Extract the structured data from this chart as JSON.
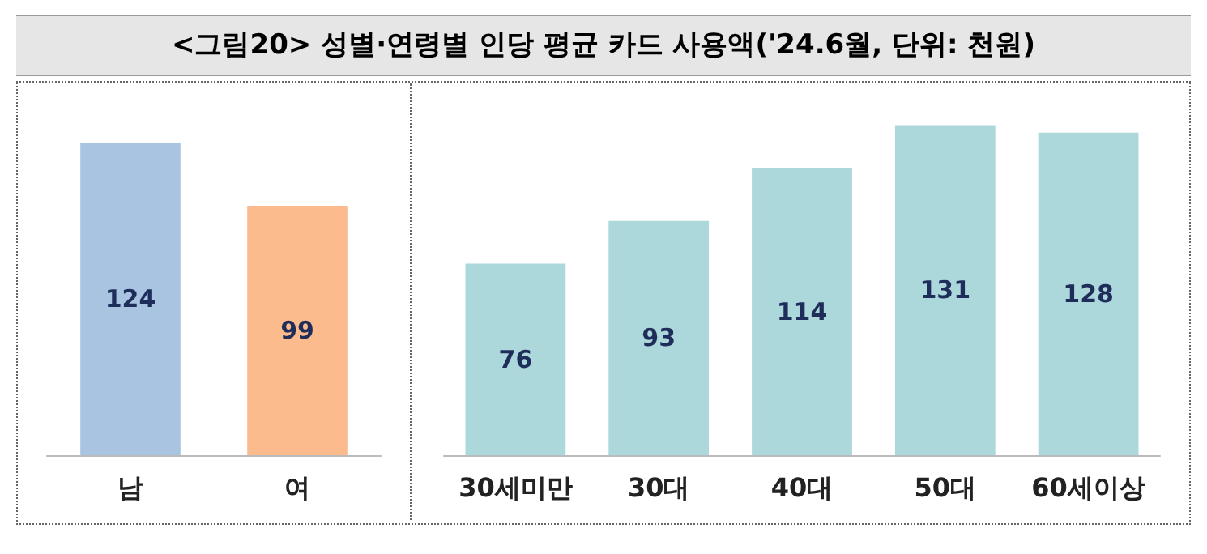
{
  "chart_data": [
    {
      "type": "bar",
      "title": "<그림20> 성별·연령별 인당 평균 카드 사용액('24.6월, 단위: 천원)",
      "categories": [
        "남",
        "여"
      ],
      "values": [
        124,
        99
      ],
      "colors": [
        "#a9c4e0",
        "#fcbb8c"
      ],
      "data_labels": true
    },
    {
      "type": "bar",
      "categories": [
        "30세미만",
        "30대",
        "40대",
        "50대",
        "60세이상"
      ],
      "values": [
        76,
        93,
        114,
        131,
        128
      ],
      "color": "#acd7db",
      "data_labels": true
    }
  ]
}
